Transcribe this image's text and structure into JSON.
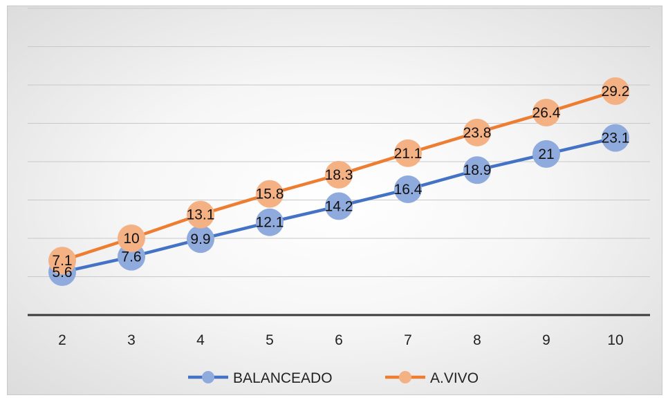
{
  "chart_data": {
    "type": "line",
    "categories": [
      "2",
      "3",
      "4",
      "5",
      "6",
      "7",
      "8",
      "9",
      "10"
    ],
    "series": [
      {
        "name": "BALANCEADO",
        "color": "#4472c4",
        "marker_color": "#8faadc",
        "values": [
          5.6,
          7.6,
          9.9,
          12.1,
          14.2,
          16.4,
          18.9,
          21,
          23.1
        ],
        "labels": [
          "5.6",
          "7.6",
          "9.9",
          "12.1",
          "14.2",
          "16.4",
          "18.9",
          "21",
          "23.1"
        ]
      },
      {
        "name": "A.VIVO",
        "color": "#ed7d31",
        "marker_color": "#f4b183",
        "values": [
          7.1,
          10,
          13.1,
          15.8,
          18.3,
          21.1,
          23.8,
          26.4,
          29.2
        ],
        "labels": [
          "7.1",
          "10",
          "13.1",
          "15.8",
          "18.3",
          "21.1",
          "23.8",
          "26.4",
          "29.2"
        ]
      }
    ],
    "ylim": [
      0,
      40
    ],
    "y_gridlines": [
      5,
      10,
      15,
      20,
      25,
      30,
      35,
      40
    ],
    "grid": true,
    "y_tick_labels_visible": false,
    "legend": "bottom",
    "title": "",
    "xlabel": "",
    "ylabel": ""
  }
}
